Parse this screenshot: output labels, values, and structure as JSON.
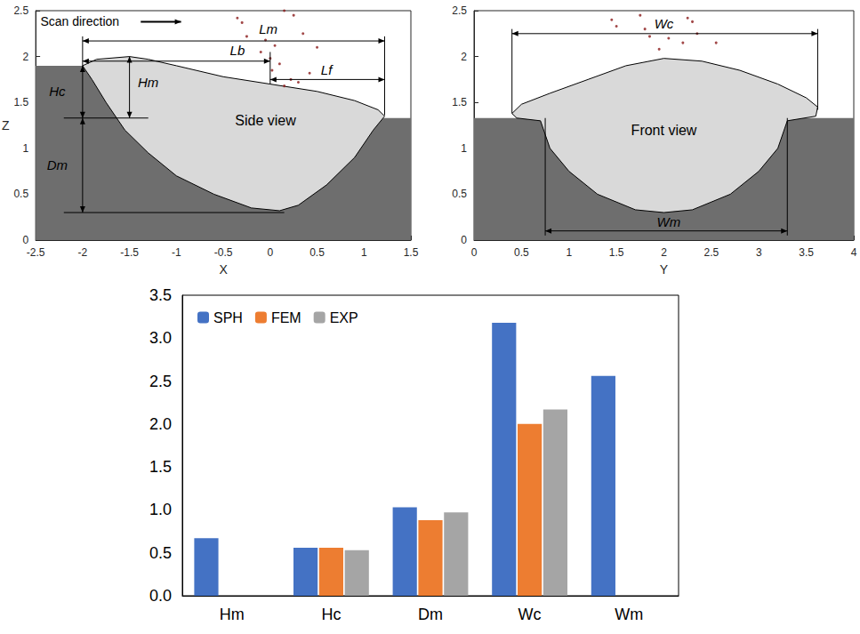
{
  "chart_data": [
    {
      "type": "profile",
      "xlabel": "X",
      "ylabel": "Z",
      "xlim": [
        -2.5,
        1.5
      ],
      "xticks": [
        -2.5,
        -2,
        -1.5,
        -1,
        -0.5,
        0,
        0.5,
        1,
        1.5
      ],
      "ylim": [
        0,
        2.5
      ],
      "yticks": [
        0,
        0.5,
        1,
        1.5,
        2,
        2.5
      ],
      "grid": false,
      "substrate": {
        "color": "#6e6e6e",
        "points": [
          [
            -2.5,
            0
          ],
          [
            -2.5,
            1.9
          ],
          [
            -2,
            1.9
          ],
          [
            -1.6,
            1.33
          ],
          [
            1.5,
            1.33
          ],
          [
            1.5,
            0
          ]
        ]
      },
      "melt_pool": {
        "color": "#d9d9d9",
        "points": [
          [
            -2,
            1.9
          ],
          [
            -1.85,
            1.97
          ],
          [
            -1.5,
            2.0
          ],
          [
            -1.3,
            1.97
          ],
          [
            -1.0,
            1.9
          ],
          [
            -0.5,
            1.78
          ],
          [
            0,
            1.7
          ],
          [
            0.5,
            1.62
          ],
          [
            0.9,
            1.52
          ],
          [
            1.15,
            1.42
          ],
          [
            1.22,
            1.35
          ],
          [
            1.1,
            1.2
          ],
          [
            0.9,
            0.9
          ],
          [
            0.6,
            0.6
          ],
          [
            0.3,
            0.38
          ],
          [
            0.1,
            0.32
          ],
          [
            -0.2,
            0.35
          ],
          [
            -0.6,
            0.5
          ],
          [
            -1.0,
            0.7
          ],
          [
            -1.3,
            0.95
          ],
          [
            -1.55,
            1.2
          ],
          [
            -1.75,
            1.5
          ],
          [
            -1.9,
            1.75
          ],
          [
            -2,
            1.9
          ]
        ]
      },
      "particles": {
        "color": "#8b1a1a",
        "points": [
          [
            -0.35,
            2.42
          ],
          [
            -0.3,
            2.37
          ],
          [
            0.15,
            2.5
          ],
          [
            0.25,
            2.45
          ],
          [
            -0.05,
            2.18
          ],
          [
            -0.25,
            2.22
          ],
          [
            0.05,
            2.12
          ],
          [
            -0.1,
            2.05
          ],
          [
            0.0,
            1.98
          ],
          [
            0.1,
            1.92
          ],
          [
            0.02,
            1.85
          ],
          [
            0.22,
            1.75
          ],
          [
            0.3,
            1.72
          ],
          [
            0.15,
            1.68
          ],
          [
            0.42,
            1.82
          ],
          [
            0.5,
            2.1
          ],
          [
            0.35,
            2.25
          ]
        ]
      },
      "guides": [
        [
          [
            -2,
            2.22
          ],
          [
            -2,
            1.9
          ]
        ],
        [
          [
            1.22,
            2.22
          ],
          [
            1.22,
            1.36
          ]
        ],
        [
          [
            0,
            2.05
          ],
          [
            0,
            1.7
          ]
        ],
        [
          [
            -2.2,
            1.33
          ],
          [
            -1.3,
            1.33
          ]
        ],
        [
          [
            -2.2,
            0.3
          ],
          [
            0.15,
            0.3
          ]
        ]
      ],
      "dimensions": [
        {
          "label": "Lm",
          "from": [
            -2,
            2.17
          ],
          "to": [
            1.22,
            2.17
          ],
          "label_at": [
            -0.02,
            2.3
          ]
        },
        {
          "label": "Lb",
          "from": [
            -2,
            1.95
          ],
          "to": [
            0,
            1.95
          ],
          "label_at": [
            -0.35,
            2.07
          ]
        },
        {
          "label": "Lf",
          "from": [
            0,
            1.75
          ],
          "to": [
            1.22,
            1.75
          ],
          "label_at": [
            0.6,
            1.86
          ]
        },
        {
          "label": "Hc",
          "from": [
            -2,
            1.9
          ],
          "to": [
            -2,
            1.33
          ],
          "label_at": [
            -2.27,
            1.62
          ]
        },
        {
          "label": "Hm",
          "from": [
            -1.5,
            2.0
          ],
          "to": [
            -1.5,
            1.33
          ],
          "label_at": [
            -1.3,
            1.72
          ]
        },
        {
          "label": "Dm",
          "from": [
            -2,
            1.33
          ],
          "to": [
            -2,
            0.3
          ],
          "label_at": [
            -2.27,
            0.82
          ]
        }
      ],
      "texts": [
        {
          "text": "Side view",
          "at": [
            -0.05,
            1.3
          ]
        }
      ],
      "scan": {
        "text": "Scan direction",
        "at": [
          -2.45,
          2.38
        ],
        "arrow": [
          [
            -1.38,
            2.38
          ],
          [
            -0.95,
            2.38
          ]
        ]
      }
    },
    {
      "type": "profile",
      "xlabel": "Y",
      "xlim": [
        0,
        4
      ],
      "xticks": [
        0,
        0.5,
        1,
        1.5,
        2,
        2.5,
        3,
        3.5,
        4
      ],
      "ylim": [
        0,
        2.5
      ],
      "yticks": [
        0,
        0.5,
        1,
        1.5,
        2,
        2.5
      ],
      "grid": false,
      "substrate": {
        "color": "#6e6e6e",
        "points": [
          [
            0,
            0
          ],
          [
            0,
            1.33
          ],
          [
            4,
            1.33
          ],
          [
            4,
            0
          ]
        ]
      },
      "melt_pool": {
        "color": "#d9d9d9",
        "points": [
          [
            0.4,
            1.38
          ],
          [
            0.5,
            1.48
          ],
          [
            0.8,
            1.6
          ],
          [
            1.2,
            1.75
          ],
          [
            1.6,
            1.9
          ],
          [
            2.0,
            1.98
          ],
          [
            2.4,
            1.95
          ],
          [
            2.8,
            1.85
          ],
          [
            3.2,
            1.7
          ],
          [
            3.5,
            1.55
          ],
          [
            3.62,
            1.45
          ],
          [
            3.6,
            1.35
          ],
          [
            3.3,
            1.3
          ],
          [
            3.2,
            1.0
          ],
          [
            3.0,
            0.75
          ],
          [
            2.7,
            0.5
          ],
          [
            2.3,
            0.33
          ],
          [
            2.0,
            0.3
          ],
          [
            1.7,
            0.33
          ],
          [
            1.3,
            0.5
          ],
          [
            1.0,
            0.75
          ],
          [
            0.8,
            1.0
          ],
          [
            0.7,
            1.3
          ],
          [
            0.45,
            1.33
          ],
          [
            0.4,
            1.38
          ]
        ]
      },
      "particles": {
        "color": "#8b1a1a",
        "points": [
          [
            1.45,
            2.4
          ],
          [
            1.5,
            2.33
          ],
          [
            1.75,
            2.45
          ],
          [
            1.85,
            2.22
          ],
          [
            2.05,
            2.2
          ],
          [
            2.2,
            2.15
          ],
          [
            2.25,
            2.42
          ],
          [
            2.3,
            2.38
          ],
          [
            2.35,
            2.25
          ],
          [
            2.55,
            2.15
          ],
          [
            1.95,
            2.08
          ],
          [
            1.8,
            2.3
          ]
        ]
      },
      "guides": [
        [
          [
            0.4,
            2.3
          ],
          [
            0.4,
            1.38
          ]
        ],
        [
          [
            3.62,
            2.3
          ],
          [
            3.62,
            1.42
          ]
        ],
        [
          [
            0.75,
            1.33
          ],
          [
            0.75,
            0.05
          ]
        ],
        [
          [
            3.3,
            1.33
          ],
          [
            3.3,
            0.05
          ]
        ]
      ],
      "dimensions": [
        {
          "label": "Wc",
          "from": [
            0.4,
            2.25
          ],
          "to": [
            3.62,
            2.25
          ],
          "label_at": [
            2.0,
            2.36
          ]
        },
        {
          "label": "Wm",
          "from": [
            0.75,
            0.1
          ],
          "to": [
            3.3,
            0.1
          ],
          "label_at": [
            2.05,
            0.2
          ]
        }
      ],
      "texts": [
        {
          "text": "Front view",
          "at": [
            2.0,
            1.2
          ]
        }
      ]
    },
    {
      "type": "bar",
      "categories": [
        "Hm",
        "Hc",
        "Dm",
        "Wc",
        "Wm"
      ],
      "series": [
        {
          "name": "SPH",
          "color": "#4472c4",
          "values": [
            0.67,
            0.56,
            1.03,
            3.18,
            2.56
          ]
        },
        {
          "name": "FEM",
          "color": "#ed7d31",
          "values": [
            null,
            0.56,
            0.88,
            2.0,
            null
          ]
        },
        {
          "name": "EXP",
          "color": "#a5a5a5",
          "values": [
            null,
            0.53,
            0.97,
            2.17,
            null
          ]
        }
      ],
      "ylim": [
        0,
        3.5
      ],
      "yticks": [
        {
          "value": 0,
          "label": "0.0"
        },
        0.5,
        {
          "value": 1,
          "label": "1.0"
        },
        1.5,
        {
          "value": 2,
          "label": "2.0"
        },
        2.5,
        {
          "value": 3,
          "label": "3.0"
        },
        3.5
      ],
      "grid": false,
      "legend": "upper left"
    }
  ]
}
